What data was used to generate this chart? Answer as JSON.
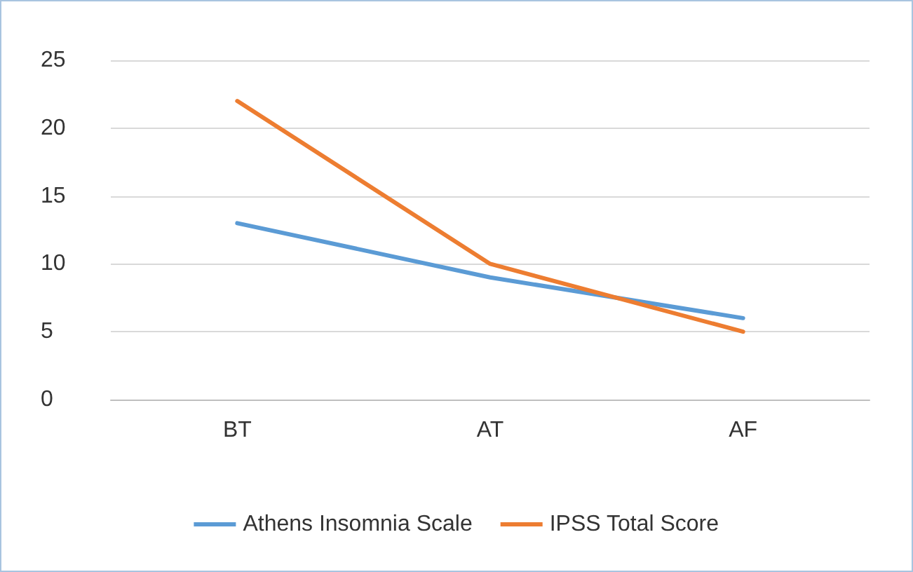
{
  "chart_data": {
    "type": "line",
    "categories": [
      "BT",
      "AT",
      "AF"
    ],
    "series": [
      {
        "name": "Athens Insomnia Scale",
        "color": "#5b9bd5",
        "values": [
          13,
          9,
          6
        ]
      },
      {
        "name": "IPSS Total Score",
        "color": "#ed7d31",
        "values": [
          22,
          10,
          5
        ]
      }
    ],
    "ylim": [
      0,
      25
    ],
    "yticks": [
      0,
      5,
      10,
      15,
      20,
      25
    ],
    "grid": "y",
    "legend": "bottom",
    "marker": "none",
    "line_style": "solid"
  }
}
